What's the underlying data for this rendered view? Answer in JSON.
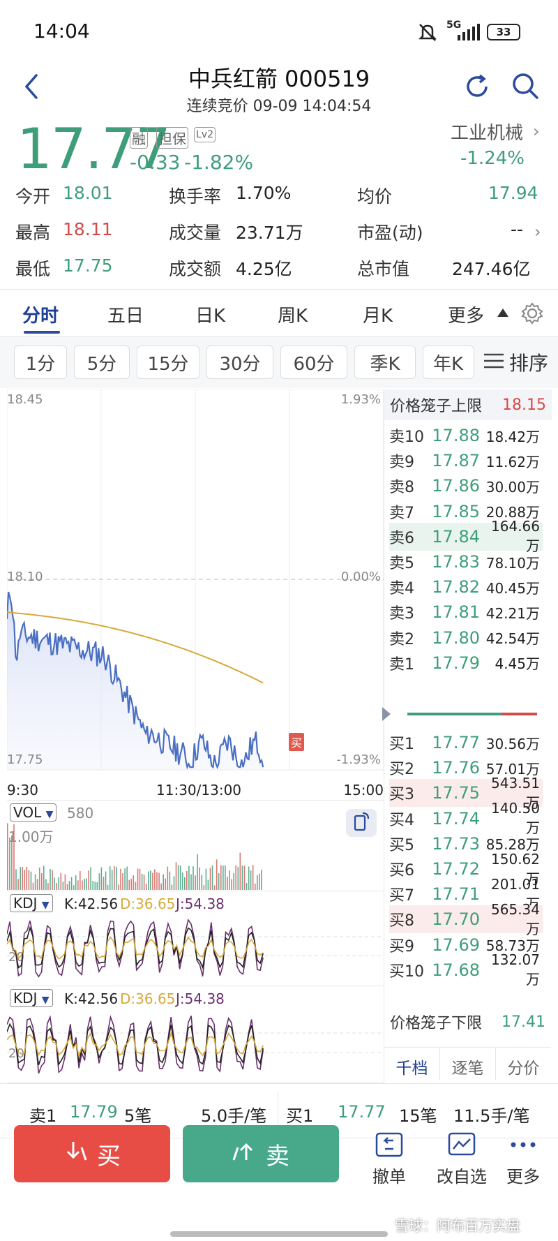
{
  "status_bar": {
    "time": "14:04",
    "network": "5G",
    "battery": "33"
  },
  "header": {
    "title": "中兵红箭 000519",
    "subtitle": "连续竞价 09-09 14:04:54"
  },
  "quote": {
    "price": "17.77",
    "badge1": "融",
    "badge2": "担保",
    "badge3": "Lv2",
    "change": "-0.33",
    "change_pct": "-1.82%",
    "sector": "工业机械",
    "sector_pct": "-1.24%"
  },
  "stats": [
    {
      "label": "今开",
      "value": "18.01"
    },
    {
      "label": "换手率",
      "value": "1.70%"
    },
    {
      "label": "均价",
      "value": "17.94"
    },
    {
      "label": "最高",
      "value": "18.11"
    },
    {
      "label": "成交量",
      "value": "23.71万"
    },
    {
      "label": "市盈(动)",
      "value": "--"
    },
    {
      "label": "最低",
      "value": "17.75"
    },
    {
      "label": "成交额",
      "value": "4.25亿"
    },
    {
      "label": "总市值",
      "value": "247.46亿"
    }
  ],
  "chart_tabs": [
    "分时",
    "五日",
    "日K",
    "周K",
    "月K",
    "更多"
  ],
  "period_pills": [
    "1分",
    "5分",
    "15分",
    "30分",
    "60分",
    "季K",
    "年K"
  ],
  "sort_label": "排序",
  "chart": {
    "y_top": "18.45",
    "y_mid": "18.10",
    "y_bot": "17.75",
    "pct_top": "1.93%",
    "pct_mid": "0.00%",
    "pct_bot": "-1.93%",
    "x_start": "9:30",
    "x_mid": "11:30/13:00",
    "x_end": "15:00",
    "buy_marker": "买"
  },
  "vol_panel": {
    "label": "VOL",
    "value": "580",
    "scale": "1.00万"
  },
  "kdj_panels": [
    {
      "label": "KDJ",
      "k": "K:42.56",
      "d": "D:36.65",
      "j": "J:54.38",
      "level": "20"
    },
    {
      "label": "KDJ",
      "k": "K:42.56",
      "d": "D:36.65",
      "j": "J:54.38",
      "level": "20"
    }
  ],
  "orderbook": {
    "upper_label": "价格笼子上限",
    "upper_value": "18.15",
    "asks": [
      {
        "level": "卖10",
        "price": "17.88",
        "vol": "18.42万"
      },
      {
        "level": "卖9",
        "price": "17.87",
        "vol": "11.62万"
      },
      {
        "level": "卖8",
        "price": "17.86",
        "vol": "30.00万"
      },
      {
        "level": "卖7",
        "price": "17.85",
        "vol": "20.88万"
      },
      {
        "level": "卖6",
        "price": "17.84",
        "vol": "164.66万"
      },
      {
        "level": "卖5",
        "price": "17.83",
        "vol": "78.10万"
      },
      {
        "level": "卖4",
        "price": "17.82",
        "vol": "40.45万"
      },
      {
        "level": "卖3",
        "price": "17.81",
        "vol": "42.21万"
      },
      {
        "level": "卖2",
        "price": "17.80",
        "vol": "42.54万"
      },
      {
        "level": "卖1",
        "price": "17.79",
        "vol": "4.45万"
      }
    ],
    "bids": [
      {
        "level": "买1",
        "price": "17.77",
        "vol": "30.56万"
      },
      {
        "level": "买2",
        "price": "17.76",
        "vol": "57.01万"
      },
      {
        "level": "买3",
        "price": "17.75",
        "vol": "543.51万"
      },
      {
        "level": "买4",
        "price": "17.74",
        "vol": "140.50万"
      },
      {
        "level": "买5",
        "price": "17.73",
        "vol": "85.28万"
      },
      {
        "level": "买6",
        "price": "17.72",
        "vol": "150.62万"
      },
      {
        "level": "买7",
        "price": "17.71",
        "vol": "201.01万"
      },
      {
        "level": "买8",
        "price": "17.70",
        "vol": "565.34万"
      },
      {
        "level": "买9",
        "price": "17.69",
        "vol": "58.73万"
      },
      {
        "level": "买10",
        "price": "17.68",
        "vol": "132.07万"
      }
    ],
    "lower_label": "价格笼子下限",
    "lower_value": "17.41",
    "tabs": [
      "千档",
      "逐笔",
      "分价"
    ]
  },
  "summary": {
    "sell_label": "卖1",
    "sell_price": "17.79",
    "sell_count": "5笔",
    "sell_avg": "5.0手/笔",
    "buy_label": "买1",
    "buy_price": "17.77",
    "buy_count": "15笔",
    "buy_avg": "11.5手/笔"
  },
  "actions": {
    "buy": "买",
    "sell": "卖",
    "cancel": "撤单",
    "edit_watch": "改自选",
    "more": "更多"
  },
  "watermark": "雪球：阿布百万实盘",
  "colors": {
    "up": "#d34a48",
    "down": "#3e9e7a",
    "price_line": "#4a6fc2",
    "avg_line": "#d8a83a",
    "accent": "#2b4a9c"
  }
}
